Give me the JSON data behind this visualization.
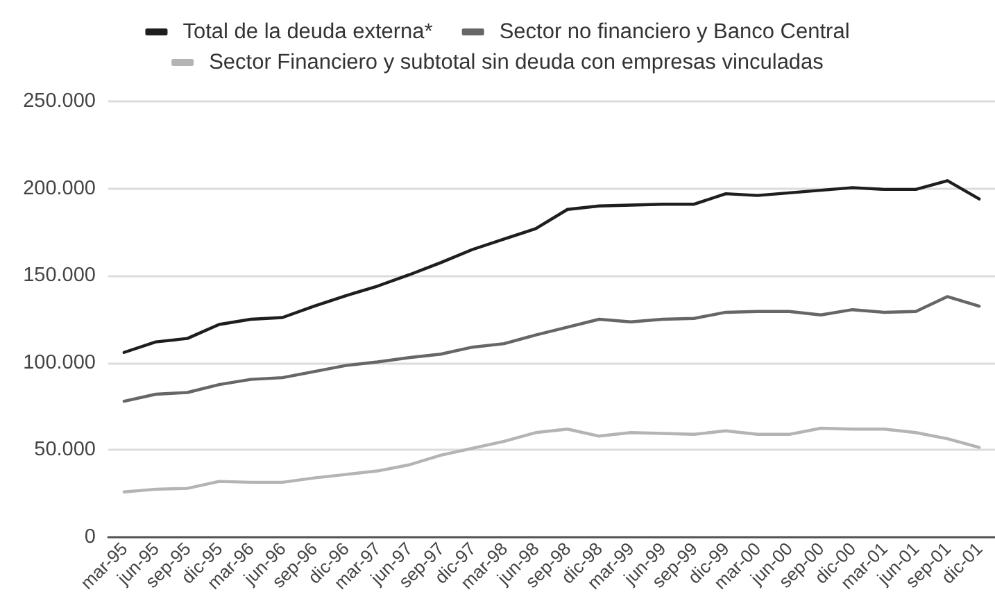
{
  "chart_data": {
    "type": "line",
    "categories": [
      "mar-95",
      "jun-95",
      "sep-95",
      "dic-95",
      "mar-96",
      "jun-96",
      "sep-96",
      "dic-96",
      "mar-97",
      "jun-97",
      "sep-97",
      "dic-97",
      "mar-98",
      "jun-98",
      "sep-98",
      "dic-98",
      "mar-99",
      "jun-99",
      "sep-99",
      "dic-99",
      "mar-00",
      "jun-00",
      "sep-00",
      "dic-00",
      "mar-01",
      "jun-01",
      "sep-01",
      "dic-01"
    ],
    "series": [
      {
        "name": "Total de la deuda externa*",
        "color": "#1e1e1e",
        "values": [
          106000,
          112000,
          114000,
          122000,
          125000,
          126000,
          132500,
          138500,
          144000,
          150500,
          157500,
          165000,
          171000,
          177000,
          188000,
          190000,
          190500,
          191000,
          191000,
          197000,
          196000,
          197500,
          199000,
          200500,
          199500,
          199500,
          204500,
          194000
        ]
      },
      {
        "name": "Sector no financiero y Banco Central",
        "color": "#666666",
        "values": [
          78000,
          82000,
          83000,
          87500,
          90500,
          91500,
          95000,
          98500,
          100500,
          103000,
          105000,
          109000,
          111000,
          116000,
          120500,
          125000,
          123500,
          125000,
          125500,
          129000,
          129500,
          129500,
          127500,
          130500,
          129000,
          129500,
          138000,
          132500
        ]
      },
      {
        "name": "Sector Financiero y subtotal sin deuda con empresas vinculadas",
        "color": "#b4b4b4",
        "values": [
          26000,
          27500,
          28000,
          32000,
          31500,
          31500,
          34000,
          36000,
          38000,
          41500,
          47000,
          51000,
          55000,
          60000,
          62000,
          58000,
          60000,
          59500,
          59000,
          61000,
          59000,
          59000,
          62500,
          62000,
          62000,
          60000,
          56500,
          51500
        ]
      }
    ],
    "ylim": [
      0,
      250000
    ],
    "yticks": [
      0,
      {
        "value": 50000,
        "label": "50.000"
      },
      {
        "value": 100000,
        "label": "100.000"
      },
      {
        "value": 150000,
        "label": "150.000"
      },
      {
        "value": 200000,
        "label": "200.000"
      },
      {
        "value": 250000,
        "label": "250.000"
      }
    ],
    "grid": "y",
    "legend": "top"
  }
}
